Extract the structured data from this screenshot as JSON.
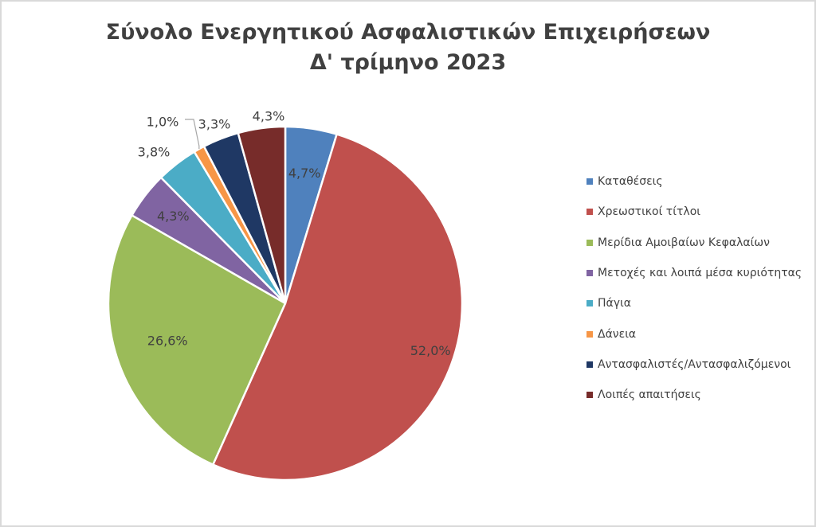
{
  "chart_data": {
    "type": "pie",
    "title_line1": "Σύνολο Ενεργητικού Ασφαλιστικών Επιχειρήσεων",
    "title_line2": "Δ' τρίμηνο 2023",
    "legend_position": "right",
    "slices": [
      {
        "name": "Καταθέσεις",
        "value": 4.7,
        "label": "4,7%",
        "color": "#4F81BD"
      },
      {
        "name": "Χρεωστικοί τίτλοι",
        "value": 52.0,
        "label": "52,0%",
        "color": "#C0504D"
      },
      {
        "name": "Μερίδια  Αμοιβαίων Κεφαλαίων",
        "value": 26.6,
        "label": "26,6%",
        "color": "#9BBB59"
      },
      {
        "name": "Μετοχές και λοιπά μέσα κυριότητας",
        "value": 4.3,
        "label": "4,3%",
        "color": "#8064A2"
      },
      {
        "name": "Πάγια",
        "value": 3.8,
        "label": "3,8%",
        "color": "#4BACC6"
      },
      {
        "name": "Δάνεια",
        "value": 1.0,
        "label": "1,0%",
        "color": "#F79646"
      },
      {
        "name": "Αντασφαλιστές/Αντασφαλιζόμενοι",
        "value": 3.3,
        "label": "3,3%",
        "color": "#1F3864"
      },
      {
        "name": "Λοιπές απαιτήσεις",
        "value": 4.3,
        "label": "4,3%",
        "color": "#772C2A"
      }
    ]
  }
}
